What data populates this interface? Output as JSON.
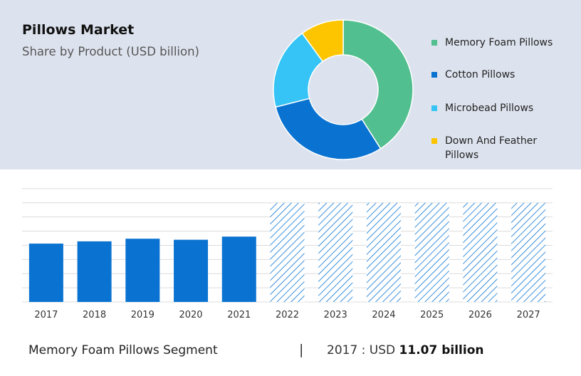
{
  "header": {
    "title": "Pillows Market",
    "subtitle": "Share by Product (USD billion)"
  },
  "legend": {
    "items": [
      {
        "label": "Memory Foam Pillows",
        "color": "#52bf90"
      },
      {
        "label": "Cotton Pillows",
        "color": "#0a73d1"
      },
      {
        "label": "Microbead Pillows",
        "color": "#35c4f5"
      },
      {
        "label": "Down And Feather Pillows",
        "color": "#fdc500"
      }
    ]
  },
  "footer": {
    "segment": "Memory Foam Pillows Segment",
    "separator": "|",
    "year_prefix": "2017 : USD ",
    "value_text": "11.07 billion"
  },
  "chart_data": [
    {
      "type": "pie",
      "donut": true,
      "title": "Pillows Market",
      "subtitle": "Share by Product (USD billion)",
      "categories": [
        "Memory Foam Pillows",
        "Cotton Pillows",
        "Microbead Pillows",
        "Down And Feather Pillows"
      ],
      "values": [
        41,
        30,
        19,
        10
      ],
      "colors": [
        "#52bf90",
        "#0a73d1",
        "#35c4f5",
        "#fdc500"
      ],
      "legend": "right"
    },
    {
      "type": "bar",
      "categories": [
        "2017",
        "2018",
        "2019",
        "2020",
        "2021",
        "2022",
        "2023",
        "2024",
        "2025",
        "2026",
        "2027"
      ],
      "values": [
        11.07,
        11.5,
        12.0,
        11.8,
        12.4,
        18.8,
        18.8,
        18.8,
        18.8,
        18.8,
        18.8
      ],
      "forecast_from": "2022",
      "color": "#0a73d1",
      "forecast_style": "hatched",
      "ylim": [
        0,
        21.5
      ],
      "grid": true
    }
  ]
}
